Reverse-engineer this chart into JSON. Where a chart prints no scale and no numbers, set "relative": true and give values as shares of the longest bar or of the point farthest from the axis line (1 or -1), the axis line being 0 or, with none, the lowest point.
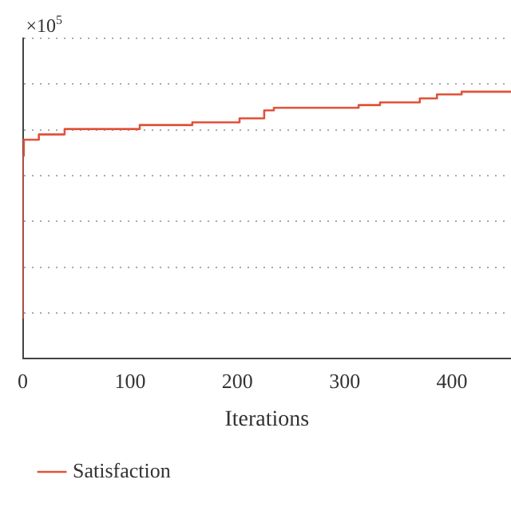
{
  "chart_data": {
    "type": "step",
    "relative": true,
    "xlabel": "Iterations",
    "annotations": [
      "×10$^{5}$"
    ],
    "xlim": [
      0,
      455
    ],
    "xticks": [
      0,
      100,
      200,
      300,
      400
    ],
    "grid": "y",
    "legend": "bottom left",
    "line_style": "solid",
    "marker": "none",
    "series": [
      {
        "name": "Satisfaction",
        "color": "#e0533a",
        "x": [
          0,
          1,
          15,
          39,
          109,
          158,
          202,
          225,
          234,
          313,
          333,
          370,
          386,
          409,
          447,
          455
        ],
        "values": [
          0.15,
          0.76,
          0.82,
          0.84,
          0.86,
          0.875,
          0.885,
          0.9,
          0.93,
          0.94,
          0.95,
          0.96,
          0.975,
          0.99,
          1.0,
          1.0
        ]
      }
    ]
  }
}
